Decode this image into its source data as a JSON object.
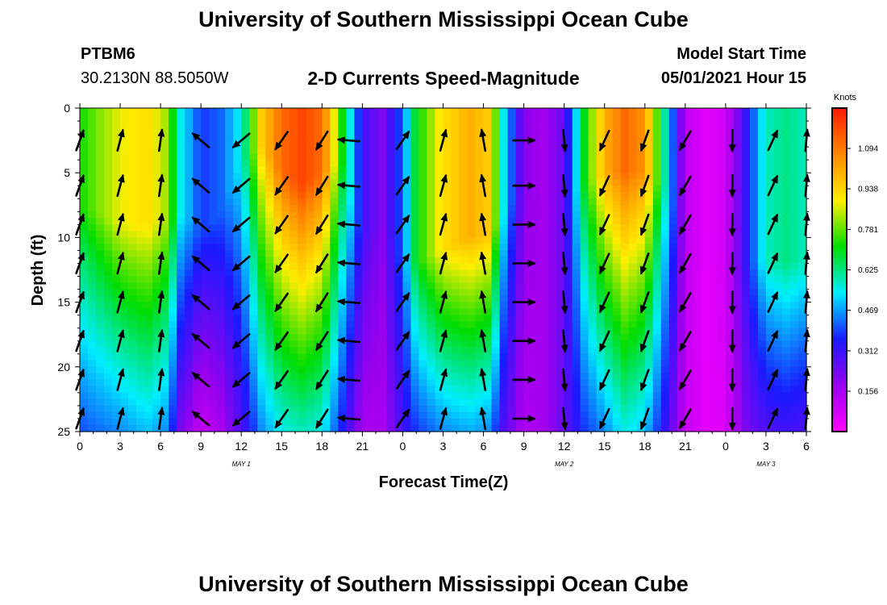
{
  "header": {
    "title": "University of Southern Mississippi Ocean Cube",
    "station": "PTBM6",
    "coordinates": "30.2130N  88.5050W",
    "subtitle": "2-D Currents Speed-Magnitude",
    "model_start_label": "Model Start Time",
    "model_start_value": "05/01/2021 Hour 15"
  },
  "footer": {
    "title": "University of Southern Mississippi Ocean Cube"
  },
  "chart_data": {
    "type": "heatmap",
    "xlabel": "Forecast Time(Z)",
    "ylabel": "Depth (ft)",
    "x_range_hours": [
      0,
      54
    ],
    "ylim": [
      0,
      25
    ],
    "y_ticks": [
      0,
      5,
      10,
      15,
      20,
      25
    ],
    "x_tick_labels": [
      "0",
      "3",
      "6",
      "9",
      "12",
      "15",
      "18",
      "21",
      "0",
      "3",
      "6",
      "9",
      "12",
      "15",
      "18",
      "21",
      "0",
      "3",
      "6"
    ],
    "day_labels": [
      {
        "hour": 12,
        "label": "MAY 1"
      },
      {
        "hour": 36,
        "label": "MAY 2"
      },
      {
        "hour": 51,
        "label": "MAY 3"
      }
    ],
    "colorbar": {
      "unit": "Knots",
      "ticks": [
        0.156,
        0.312,
        0.469,
        0.625,
        0.781,
        0.938,
        1.094
      ],
      "range": [
        0,
        1.25
      ],
      "colors": [
        "#ff00ff",
        "#9900ee",
        "#1a1aff",
        "#00eeff",
        "#00dd00",
        "#ffee00",
        "#ff8800",
        "#ff1a00"
      ]
    },
    "speed_profile": {
      "hours": [
        0,
        1,
        3,
        5,
        6.5,
        7.5,
        9,
        10.5,
        12,
        13.5,
        15,
        16.5,
        18,
        19.5,
        21,
        22.5,
        24,
        25,
        27,
        29,
        30.5,
        31.5,
        33,
        34.5,
        36,
        37.5,
        39,
        40.5,
        42,
        43.5,
        45,
        46.5,
        48,
        49.5,
        51,
        52.5,
        54
      ],
      "surface": [
        0.72,
        0.78,
        0.88,
        0.92,
        0.82,
        0.55,
        0.38,
        0.42,
        0.55,
        0.95,
        1.12,
        1.18,
        1.12,
        0.72,
        0.3,
        0.22,
        0.42,
        0.7,
        0.92,
        1.0,
        0.95,
        0.55,
        0.2,
        0.16,
        0.25,
        0.7,
        1.0,
        1.12,
        1.05,
        0.6,
        0.12,
        0.05,
        0.08,
        0.32,
        0.58,
        0.62,
        0.58
      ],
      "bottom": [
        0.4,
        0.42,
        0.45,
        0.5,
        0.45,
        0.22,
        0.1,
        0.15,
        0.28,
        0.45,
        0.55,
        0.58,
        0.55,
        0.35,
        0.15,
        0.15,
        0.3,
        0.38,
        0.45,
        0.48,
        0.45,
        0.28,
        0.14,
        0.16,
        0.25,
        0.38,
        0.45,
        0.55,
        0.5,
        0.32,
        0.1,
        0.05,
        0.06,
        0.22,
        0.28,
        0.3,
        0.28
      ],
      "core_depth": [
        8,
        8,
        9,
        9,
        9,
        8,
        10,
        8,
        4,
        3,
        5,
        6,
        5,
        4,
        10,
        8,
        12,
        12,
        11,
        10,
        10,
        8,
        6,
        6,
        7,
        6,
        5,
        5,
        5,
        6,
        10,
        10,
        12,
        12,
        12,
        12,
        12
      ]
    },
    "vector_columns": [
      {
        "hour": 0,
        "direction_deg": 20
      },
      {
        "hour": 3,
        "direction_deg": 15
      },
      {
        "hour": 6,
        "direction_deg": 8
      },
      {
        "hour": 9,
        "direction_deg": 310
      },
      {
        "hour": 12,
        "direction_deg": 230
      },
      {
        "hour": 15,
        "direction_deg": 215
      },
      {
        "hour": 18,
        "direction_deg": 212
      },
      {
        "hour": 20,
        "direction_deg": 275
      },
      {
        "hour": 24,
        "direction_deg": 35
      },
      {
        "hour": 27,
        "direction_deg": 15
      },
      {
        "hour": 30,
        "direction_deg": 350
      },
      {
        "hour": 33,
        "direction_deg": 90
      },
      {
        "hour": 36,
        "direction_deg": 175
      },
      {
        "hour": 39,
        "direction_deg": 205
      },
      {
        "hour": 42,
        "direction_deg": 200
      },
      {
        "hour": 45,
        "direction_deg": 210
      },
      {
        "hour": 48.5,
        "direction_deg": 180
      },
      {
        "hour": 51.5,
        "direction_deg": 25
      },
      {
        "hour": 54,
        "direction_deg": 5
      }
    ],
    "vector_depths": [
      2.5,
      6,
      9,
      12,
      15,
      18,
      21,
      24
    ]
  }
}
